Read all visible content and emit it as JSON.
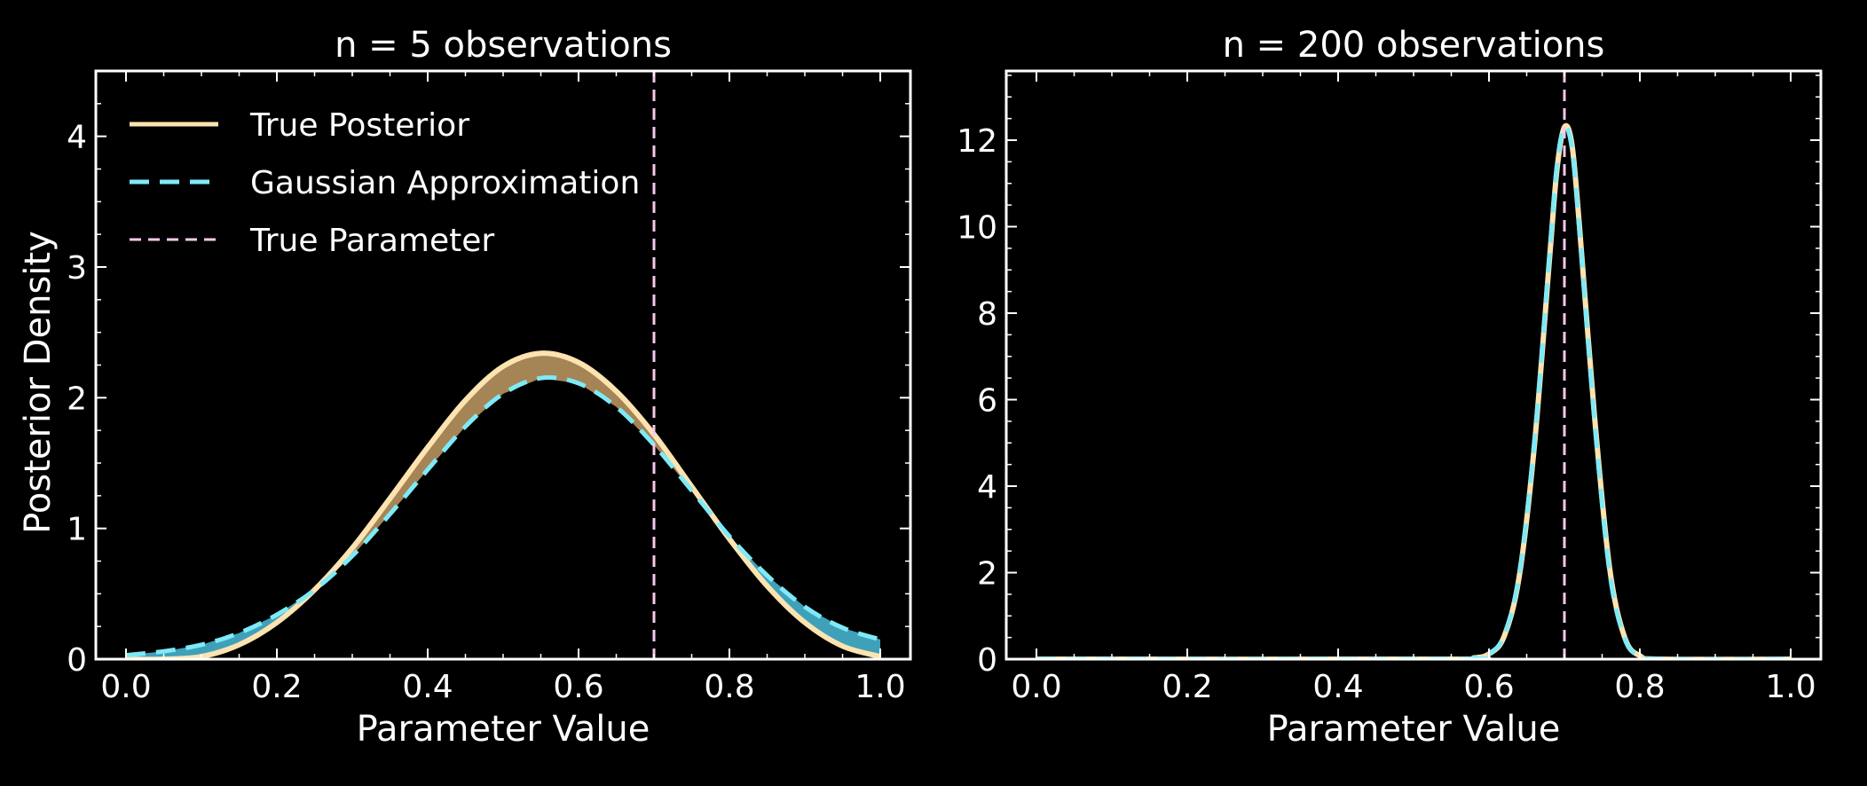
{
  "chart_data": [
    {
      "type": "line",
      "title": "n = 5 observations",
      "xlabel": "Parameter Value",
      "ylabel": "Posterior Density",
      "xlim": [
        -0.04,
        1.04
      ],
      "ylim": [
        0,
        4.5
      ],
      "xticks": [
        "0.0",
        "0.2",
        "0.4",
        "0.6",
        "0.8",
        "1.0"
      ],
      "xtick_values": [
        0.0,
        0.2,
        0.4,
        0.6,
        0.8,
        1.0
      ],
      "yticks": [
        "0",
        "1",
        "2",
        "3",
        "4"
      ],
      "ytick_values": [
        0,
        1,
        2,
        3,
        4
      ],
      "true_parameter": 0.7,
      "legend": {
        "position": "top-left",
        "entries": [
          "True Posterior",
          "Gaussian Approximation",
          "True Parameter"
        ]
      },
      "series": [
        {
          "name": "True Posterior",
          "color": "#fde3b0",
          "x": [
            0.0,
            0.05,
            0.1,
            0.15,
            0.2,
            0.25,
            0.3,
            0.35,
            0.4,
            0.45,
            0.5,
            0.55,
            0.6,
            0.65,
            0.7,
            0.75,
            0.8,
            0.85,
            0.9,
            0.95,
            1.0
          ],
          "y": [
            0.0,
            0.0,
            0.02,
            0.11,
            0.28,
            0.53,
            0.85,
            1.23,
            1.62,
            1.98,
            2.24,
            2.34,
            2.27,
            2.05,
            1.72,
            1.32,
            0.92,
            0.56,
            0.28,
            0.1,
            0.02
          ]
        },
        {
          "name": "Gaussian Approximation",
          "color": "#7eeaf7",
          "x": [
            0.0,
            0.05,
            0.1,
            0.15,
            0.2,
            0.25,
            0.3,
            0.35,
            0.4,
            0.45,
            0.5,
            0.55,
            0.6,
            0.65,
            0.7,
            0.75,
            0.8,
            0.85,
            0.9,
            0.95,
            1.0
          ],
          "y": [
            0.03,
            0.06,
            0.11,
            0.2,
            0.34,
            0.53,
            0.79,
            1.11,
            1.45,
            1.78,
            2.03,
            2.15,
            2.11,
            1.93,
            1.64,
            1.29,
            0.94,
            0.64,
            0.4,
            0.24,
            0.15
          ]
        }
      ],
      "fill_between": {
        "series": [
          "True Posterior",
          "Gaussian Approximation"
        ],
        "color_true_above": "#a58456",
        "color_approx_above": "#3fa0ba"
      }
    },
    {
      "type": "line",
      "title": "n = 200 observations",
      "xlabel": "Parameter Value",
      "ylabel": "",
      "xlim": [
        -0.04,
        1.04
      ],
      "ylim": [
        0,
        13.6
      ],
      "xticks": [
        "0.0",
        "0.2",
        "0.4",
        "0.6",
        "0.8",
        "1.0"
      ],
      "xtick_values": [
        0.0,
        0.2,
        0.4,
        0.6,
        0.8,
        1.0
      ],
      "yticks": [
        "0",
        "2",
        "4",
        "6",
        "8",
        "10",
        "12"
      ],
      "ytick_values": [
        0,
        2,
        4,
        6,
        8,
        10,
        12
      ],
      "true_parameter": 0.7,
      "series": [
        {
          "name": "True Posterior",
          "color": "#fde3b0",
          "x": [
            0.0,
            0.55,
            0.58,
            0.6,
            0.62,
            0.64,
            0.66,
            0.68,
            0.69,
            0.7,
            0.71,
            0.72,
            0.74,
            0.76,
            0.78,
            0.8,
            0.83,
            1.0
          ],
          "y": [
            0.0,
            0.0,
            0.03,
            0.12,
            0.52,
            1.9,
            4.9,
            9.2,
            11.3,
            12.3,
            11.9,
            10.0,
            5.6,
            2.1,
            0.5,
            0.08,
            0.0,
            0.0
          ]
        },
        {
          "name": "Gaussian Approximation",
          "color": "#7eeaf7",
          "x": [
            0.0,
            0.55,
            0.58,
            0.6,
            0.62,
            0.64,
            0.66,
            0.68,
            0.69,
            0.7,
            0.71,
            0.72,
            0.74,
            0.76,
            0.78,
            0.8,
            0.83,
            1.0
          ],
          "y": [
            0.0,
            0.0,
            0.03,
            0.12,
            0.55,
            1.95,
            5.0,
            9.3,
            11.4,
            12.3,
            11.8,
            9.9,
            5.5,
            2.0,
            0.48,
            0.07,
            0.0,
            0.0
          ]
        }
      ]
    }
  ]
}
